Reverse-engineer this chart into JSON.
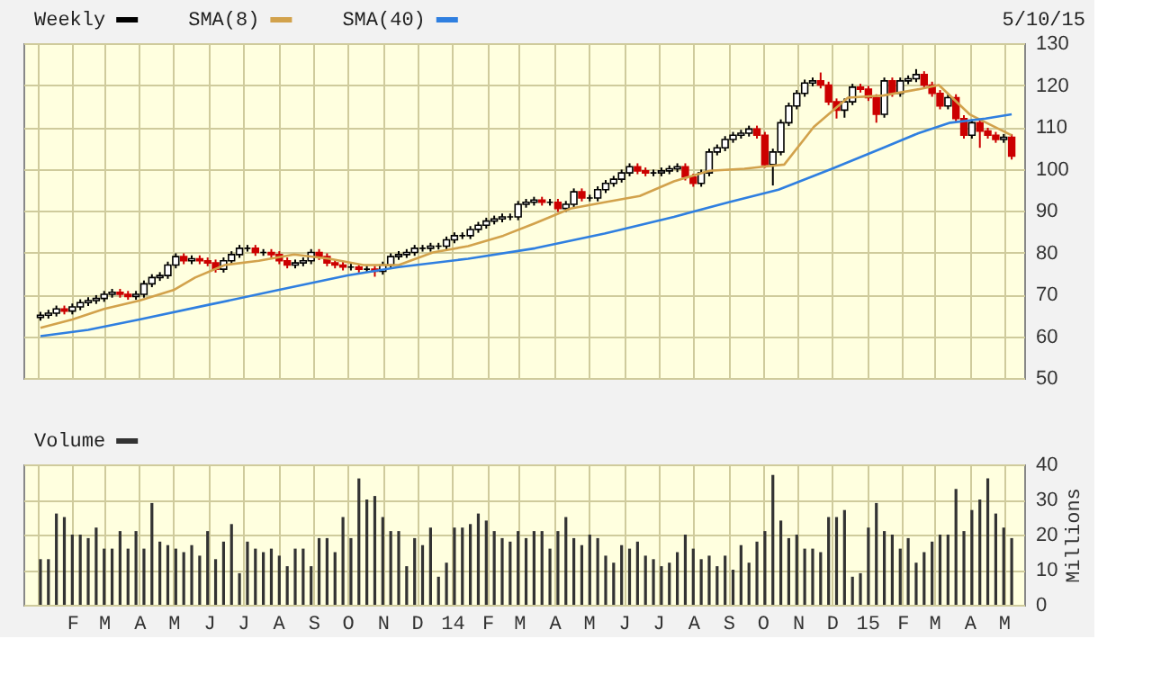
{
  "chart_data": [
    {
      "type": "candlestick",
      "title": null,
      "x": [
        "2013-01-04",
        "2013-01-11",
        "2013-01-18",
        "2013-01-25",
        "2013-02-01",
        "2013-02-08",
        "2013-02-15",
        "2013-02-22",
        "2013-03-01",
        "2013-03-08",
        "2013-03-15",
        "2013-03-22",
        "2013-03-29",
        "2013-04-05",
        "2013-04-12",
        "2013-04-19",
        "2013-04-26",
        "2013-05-03",
        "2013-05-10",
        "2013-05-17",
        "2013-05-24",
        "2013-05-31",
        "2013-06-07",
        "2013-06-14",
        "2013-06-21",
        "2013-06-28",
        "2013-07-05",
        "2013-07-12",
        "2013-07-19",
        "2013-07-26",
        "2013-08-02",
        "2013-08-09",
        "2013-08-16",
        "2013-08-23",
        "2013-08-30",
        "2013-09-06",
        "2013-09-13",
        "2013-09-20",
        "2013-09-27",
        "2013-10-04",
        "2013-10-11",
        "2013-10-18",
        "2013-10-25",
        "2013-11-01",
        "2013-11-08",
        "2013-11-15",
        "2013-11-22",
        "2013-11-29",
        "2013-12-06",
        "2013-12-13",
        "2013-12-20",
        "2013-12-27",
        "2014-01-03",
        "2014-01-10",
        "2014-01-17",
        "2014-01-24",
        "2014-01-31",
        "2014-02-07",
        "2014-02-14",
        "2014-02-21",
        "2014-02-28",
        "2014-03-07",
        "2014-03-14",
        "2014-03-21",
        "2014-03-28",
        "2014-04-04",
        "2014-04-11",
        "2014-04-18",
        "2014-04-25",
        "2014-05-02",
        "2014-05-09",
        "2014-05-16",
        "2014-05-23",
        "2014-05-30",
        "2014-06-06",
        "2014-06-13",
        "2014-06-20",
        "2014-06-27",
        "2014-07-04",
        "2014-07-11",
        "2014-07-18",
        "2014-07-25",
        "2014-08-01",
        "2014-08-08",
        "2014-08-15",
        "2014-08-22",
        "2014-08-29",
        "2014-09-05",
        "2014-09-12",
        "2014-09-19",
        "2014-09-26",
        "2014-10-03",
        "2014-10-10",
        "2014-10-17",
        "2014-10-24",
        "2014-10-31",
        "2014-11-07",
        "2014-11-14",
        "2014-11-21",
        "2014-11-28",
        "2014-12-05",
        "2014-12-12",
        "2014-12-19",
        "2014-12-26",
        "2015-01-02",
        "2015-01-09",
        "2015-01-16",
        "2015-01-23",
        "2015-01-30",
        "2015-02-06",
        "2015-02-13",
        "2015-02-20",
        "2015-02-27",
        "2015-03-06",
        "2015-03-13",
        "2015-03-20",
        "2015-03-27",
        "2015-04-03",
        "2015-04-10",
        "2015-04-17",
        "2015-04-24",
        "2015-05-01",
        "2015-05-08"
      ],
      "series": [
        {
          "name": "Weekly",
          "type": "candlestick",
          "color": "#000000",
          "colors": [
            "#000000",
            "#000000",
            "#000000",
            "#cc0000",
            "#000000",
            "#000000",
            "#000000",
            "#000000",
            "#000000",
            "#000000",
            "#cc0000",
            "#cc0000",
            "#000000",
            "#000000",
            "#000000",
            "#000000",
            "#000000",
            "#000000",
            "#cc0000",
            "#000000",
            "#cc0000",
            "#cc0000",
            "#cc0000",
            "#000000",
            "#000000",
            "#000000",
            "#000000",
            "#cc0000",
            "#000000",
            "#cc0000",
            "#cc0000",
            "#cc0000",
            "#000000",
            "#000000",
            "#000000",
            "#cc0000",
            "#cc0000",
            "#cc0000",
            "#cc0000",
            "#000000",
            "#cc0000",
            "#000000",
            "#cc0000",
            "#000000",
            "#000000",
            "#000000",
            "#000000",
            "#000000",
            "#000000",
            "#000000",
            "#000000",
            "#000000",
            "#000000",
            "#000000",
            "#000000",
            "#000000",
            "#000000",
            "#000000",
            "#000000",
            "#000000",
            "#000000",
            "#000000",
            "#000000",
            "#cc0000",
            "#000000",
            "#cc0000",
            "#000000",
            "#000000",
            "#cc0000",
            "#000000",
            "#000000",
            "#000000",
            "#000000",
            "#000000",
            "#000000",
            "#cc0000",
            "#cc0000",
            "#000000",
            "#000000",
            "#000000",
            "#000000",
            "#cc0000",
            "#cc0000",
            "#000000",
            "#000000",
            "#000000",
            "#000000",
            "#000000",
            "#000000",
            "#000000",
            "#cc0000",
            "#cc0000",
            "#000000",
            "#000000",
            "#000000",
            "#000000",
            "#000000",
            "#000000",
            "#cc0000",
            "#cc0000",
            "#cc0000",
            "#000000",
            "#000000",
            "#cc0000",
            "#cc0000",
            "#cc0000",
            "#000000",
            "#cc0000",
            "#000000",
            "#000000",
            "#000000",
            "#cc0000",
            "#cc0000",
            "#cc0000",
            "#000000",
            "#cc0000",
            "#cc0000",
            "#000000",
            "#cc0000",
            "#cc0000",
            "#cc0000",
            "#000000",
            "#cc0000"
          ],
          "ohlc": [
            [
              64.5,
              65.8,
              63.7,
              65
            ],
            [
              65,
              66.3,
              64.2,
              65.5
            ],
            [
              65.5,
              67.3,
              64.7,
              66.5
            ],
            [
              66.5,
              67.3,
              65.2,
              66
            ],
            [
              66,
              67.8,
              65.2,
              67
            ],
            [
              67,
              68.8,
              66.2,
              68
            ],
            [
              68,
              69.3,
              67.2,
              68.5
            ],
            [
              68.5,
              69.8,
              67.7,
              69
            ],
            [
              69,
              70.8,
              68.2,
              70
            ],
            [
              70,
              71.3,
              69.2,
              70.5
            ],
            [
              70.5,
              71.3,
              69.2,
              70
            ],
            [
              70,
              70.8,
              68.7,
              69.5
            ],
            [
              69.5,
              70.8,
              68.7,
              70
            ],
            [
              70,
              73.3,
              69.2,
              72.5
            ],
            [
              72.5,
              74.8,
              71.7,
              74
            ],
            [
              74,
              75.3,
              73.2,
              74.5
            ],
            [
              74.5,
              77.8,
              73.7,
              77
            ],
            [
              77,
              79.8,
              76.2,
              79
            ],
            [
              79,
              79.8,
              77.2,
              78
            ],
            [
              78,
              79.3,
              77.2,
              78.5
            ],
            [
              78.5,
              79.3,
              77.2,
              78
            ],
            [
              78,
              78.8,
              76.7,
              77.5
            ],
            [
              77.5,
              78.3,
              75.2,
              76
            ],
            [
              76,
              78.8,
              75.2,
              78
            ],
            [
              78,
              80.3,
              77.2,
              79.5
            ],
            [
              79.5,
              81.8,
              78.7,
              81
            ],
            [
              81,
              81.8,
              80.2,
              81
            ],
            [
              81,
              81.8,
              79.2,
              80
            ],
            [
              80,
              80.8,
              79.2,
              80
            ],
            [
              80,
              80.8,
              78.7,
              79.5
            ],
            [
              79.5,
              80.3,
              77.2,
              78
            ],
            [
              78,
              78.8,
              76.2,
              77
            ],
            [
              77,
              78.3,
              76.2,
              77.5
            ],
            [
              77.5,
              78.8,
              76.7,
              78
            ],
            [
              78,
              80.8,
              77.2,
              80
            ],
            [
              80,
              80.8,
              78.2,
              79
            ],
            [
              79,
              79.8,
              76.7,
              77.5
            ],
            [
              77.5,
              78.3,
              76.2,
              77
            ],
            [
              77,
              77.8,
              75.7,
              76.5
            ],
            [
              76.5,
              77.3,
              75.7,
              76.5
            ],
            [
              76.5,
              77.3,
              75.2,
              76
            ],
            [
              76,
              76.8,
              75.2,
              76
            ],
            [
              76,
              76.8,
              74.2,
              75.5
            ],
            [
              75.5,
              77.8,
              74.7,
              77
            ],
            [
              77,
              79.8,
              76.2,
              79
            ],
            [
              79,
              80.3,
              78.2,
              79.5
            ],
            [
              79.5,
              80.8,
              78.7,
              80
            ],
            [
              80,
              81.8,
              79.2,
              81
            ],
            [
              81,
              81.8,
              80.2,
              81
            ],
            [
              81,
              82.3,
              80.2,
              81.5
            ],
            [
              81.5,
              82.3,
              80.7,
              81.5
            ],
            [
              81.5,
              83.8,
              80.7,
              83
            ],
            [
              83,
              84.8,
              82.2,
              84
            ],
            [
              84,
              84.8,
              83.2,
              84
            ],
            [
              84,
              86.3,
              83.2,
              85.5
            ],
            [
              85.5,
              87.3,
              84.7,
              86.5
            ],
            [
              86.5,
              88.3,
              85.7,
              87.5
            ],
            [
              87.5,
              88.8,
              86.7,
              88
            ],
            [
              88,
              89.3,
              87.2,
              88.5
            ],
            [
              88.5,
              89.3,
              87.7,
              88.5
            ],
            [
              88.5,
              92.3,
              87.7,
              91.5
            ],
            [
              91.5,
              92.8,
              90.7,
              92
            ],
            [
              92,
              93.3,
              91.2,
              92.5
            ],
            [
              92.5,
              93.3,
              91.2,
              92
            ],
            [
              92,
              92.8,
              91.2,
              92
            ],
            [
              92,
              92.8,
              89.7,
              90.5
            ],
            [
              90.5,
              92.3,
              89.7,
              91.5
            ],
            [
              91.5,
              95.3,
              90.7,
              94.5
            ],
            [
              94.5,
              95.3,
              92.2,
              93
            ],
            [
              93,
              93.8,
              92.2,
              93
            ],
            [
              93,
              95.8,
              92.2,
              95
            ],
            [
              95,
              97.3,
              94.2,
              96.5
            ],
            [
              96.5,
              98.3,
              95.7,
              97.5
            ],
            [
              97.5,
              99.8,
              96.7,
              99
            ],
            [
              99,
              101.3,
              98.2,
              100.5
            ],
            [
              100.5,
              101.3,
              98.7,
              99.5
            ],
            [
              99.5,
              100.3,
              98.2,
              99
            ],
            [
              99,
              99.8,
              98.2,
              99
            ],
            [
              99,
              100.3,
              98.2,
              99.5
            ],
            [
              99.5,
              100.8,
              98.7,
              100
            ],
            [
              100,
              101.3,
              99.2,
              100.5
            ],
            [
              100.5,
              101.3,
              97.2,
              98
            ],
            [
              98,
              98.8,
              95.7,
              96.5
            ],
            [
              96.5,
              99.8,
              95.7,
              99
            ],
            [
              99,
              104.8,
              98.2,
              104
            ],
            [
              104,
              105.8,
              103.2,
              105
            ],
            [
              105,
              107.8,
              104.2,
              107
            ],
            [
              107,
              108.8,
              106.2,
              108
            ],
            [
              108,
              109.3,
              107.2,
              108.5
            ],
            [
              108.5,
              110.3,
              107.7,
              109.5
            ],
            [
              109.5,
              110.3,
              107.2,
              108
            ],
            [
              108,
              108.8,
              100.2,
              101
            ],
            [
              101,
              104.8,
              96,
              104
            ],
            [
              104,
              111.8,
              103.2,
              111
            ],
            [
              111,
              115.8,
              110.2,
              115
            ],
            [
              115,
              118.8,
              114.2,
              118
            ],
            [
              118,
              121.3,
              117.2,
              120.5
            ],
            [
              120.5,
              121.8,
              119.7,
              121
            ],
            [
              121,
              123,
              119.2,
              120
            ],
            [
              120,
              120.8,
              115.2,
              116
            ],
            [
              116,
              116.8,
              112,
              114
            ],
            [
              114,
              116.8,
              112.2,
              116
            ],
            [
              116,
              120.3,
              115.2,
              119.5
            ],
            [
              119.5,
              120.3,
              118.2,
              119
            ],
            [
              119,
              119.8,
              116.2,
              117
            ],
            [
              117,
              117.8,
              111,
              113
            ],
            [
              113,
              121.8,
              112.2,
              121
            ],
            [
              121,
              121.8,
              117.2,
              118
            ],
            [
              118,
              121.8,
              117.2,
              121
            ],
            [
              121,
              122.3,
              120.2,
              121.5
            ],
            [
              121.5,
              123.8,
              120.7,
              122.5
            ],
            [
              122.5,
              123.3,
              119.2,
              120
            ],
            [
              120,
              120.8,
              117.2,
              118
            ],
            [
              118,
              118.8,
              114.2,
              115
            ],
            [
              115,
              117.8,
              114.2,
              117
            ],
            [
              117,
              117.8,
              111.2,
              112
            ],
            [
              112,
              112.8,
              107.2,
              108
            ],
            [
              108,
              111.8,
              107.2,
              111
            ],
            [
              111,
              111.8,
              105,
              109
            ],
            [
              109,
              109.8,
              107.2,
              108
            ],
            [
              108,
              108.8,
              106.2,
              107
            ],
            [
              107,
              108.3,
              106.2,
              107.5
            ],
            [
              107.5,
              108.3,
              102.2,
              103
            ]
          ]
        },
        {
          "name": "SMA(8)",
          "type": "line",
          "color": "#d2a24c",
          "x": [
            "2013-01-04",
            "2013-02-01",
            "2013-03-01",
            "2013-04-01",
            "2013-05-01",
            "2013-05-20",
            "2013-06-15",
            "2013-07-15",
            "2013-08-15",
            "2013-09-15",
            "2013-10-15",
            "2013-11-15",
            "2013-12-15",
            "2014-01-15",
            "2014-02-15",
            "2014-03-15",
            "2014-04-15",
            "2014-05-15",
            "2014-06-15",
            "2014-07-15",
            "2014-08-15",
            "2014-09-15",
            "2014-10-01",
            "2014-10-20",
            "2014-11-15",
            "2014-12-15",
            "2015-01-15",
            "2015-02-15",
            "2015-03-05",
            "2015-04-01",
            "2015-05-08"
          ],
          "values": [
            62,
            64,
            66.5,
            68.5,
            71,
            74,
            77,
            78,
            79.5,
            78.5,
            77,
            77,
            80,
            81.5,
            84,
            87,
            90.5,
            92,
            93.5,
            97,
            99.5,
            100,
            100.5,
            101,
            110,
            117,
            117.5,
            119,
            120,
            113,
            108
          ]
        },
        {
          "name": "SMA(40)",
          "type": "line",
          "color": "#2f7fe0",
          "x": [
            "2013-01-04",
            "2013-02-15",
            "2013-04-01",
            "2013-06-01",
            "2013-08-01",
            "2013-10-01",
            "2013-11-15",
            "2014-01-15",
            "2014-03-15",
            "2014-05-15",
            "2014-07-15",
            "2014-09-01",
            "2014-10-15",
            "2014-12-01",
            "2015-01-15",
            "2015-02-15",
            "2015-03-15",
            "2015-04-15",
            "2015-05-08"
          ],
          "values": [
            60,
            61.5,
            64,
            67.5,
            71,
            74.5,
            76.5,
            78.5,
            81,
            84.5,
            88.5,
            92,
            95,
            100,
            105,
            108.5,
            111,
            112,
            113
          ]
        }
      ],
      "xlim": [
        "2012-12-20",
        "2015-05-19"
      ],
      "xticks": [
        {
          "value": "2013-01-01",
          "label": null
        },
        {
          "value": "2013-02-01",
          "label": null
        },
        {
          "value": "2013-03-01",
          "label": null
        },
        {
          "value": "2013-04-01",
          "label": null
        },
        {
          "value": "2013-05-01",
          "label": null
        },
        {
          "value": "2013-06-01",
          "label": null
        },
        {
          "value": "2013-07-01",
          "label": null
        },
        {
          "value": "2013-08-01",
          "label": null
        },
        {
          "value": "2013-09-01",
          "label": null
        },
        {
          "value": "2013-10-01",
          "label": null
        },
        {
          "value": "2013-11-01",
          "label": null
        },
        {
          "value": "2013-12-01",
          "label": null
        },
        {
          "value": "2014-01-01",
          "label": null
        },
        {
          "value": "2014-02-01",
          "label": null
        },
        {
          "value": "2014-03-01",
          "label": null
        },
        {
          "value": "2014-04-01",
          "label": null
        },
        {
          "value": "2014-05-01",
          "label": null
        },
        {
          "value": "2014-06-01",
          "label": null
        },
        {
          "value": "2014-07-01",
          "label": null
        },
        {
          "value": "2014-08-01",
          "label": null
        },
        {
          "value": "2014-09-01",
          "label": null
        },
        {
          "value": "2014-10-01",
          "label": null
        },
        {
          "value": "2014-11-01",
          "label": null
        },
        {
          "value": "2014-12-01",
          "label": null
        },
        {
          "value": "2015-01-01",
          "label": null
        },
        {
          "value": "2015-02-01",
          "label": null
        },
        {
          "value": "2015-03-01",
          "label": null
        },
        {
          "value": "2015-04-01",
          "label": null
        },
        {
          "value": "2015-05-01",
          "label": null
        }
      ],
      "ylim": [
        50,
        130
      ],
      "yticks": [
        50,
        60,
        70,
        80,
        90,
        100,
        110,
        120,
        130
      ],
      "grid": true,
      "legend": "top left",
      "tick_labels": "y",
      "annotations": [
        "5/10/15"
      ]
    },
    {
      "type": "bar",
      "x": [
        "2013-01-04",
        "2013-01-11",
        "2013-01-18",
        "2013-01-25",
        "2013-02-01",
        "2013-02-08",
        "2013-02-15",
        "2013-02-22",
        "2013-03-01",
        "2013-03-08",
        "2013-03-15",
        "2013-03-22",
        "2013-03-29",
        "2013-04-05",
        "2013-04-12",
        "2013-04-19",
        "2013-04-26",
        "2013-05-03",
        "2013-05-10",
        "2013-05-17",
        "2013-05-24",
        "2013-05-31",
        "2013-06-07",
        "2013-06-14",
        "2013-06-21",
        "2013-06-28",
        "2013-07-05",
        "2013-07-12",
        "2013-07-19",
        "2013-07-26",
        "2013-08-02",
        "2013-08-09",
        "2013-08-16",
        "2013-08-23",
        "2013-08-30",
        "2013-09-06",
        "2013-09-13",
        "2013-09-20",
        "2013-09-27",
        "2013-10-04",
        "2013-10-11",
        "2013-10-18",
        "2013-10-25",
        "2013-11-01",
        "2013-11-08",
        "2013-11-15",
        "2013-11-22",
        "2013-11-29",
        "2013-12-06",
        "2013-12-13",
        "2013-12-20",
        "2013-12-27",
        "2014-01-03",
        "2014-01-10",
        "2014-01-17",
        "2014-01-24",
        "2014-01-31",
        "2014-02-07",
        "2014-02-14",
        "2014-02-21",
        "2014-02-28",
        "2014-03-07",
        "2014-03-14",
        "2014-03-21",
        "2014-03-28",
        "2014-04-04",
        "2014-04-11",
        "2014-04-18",
        "2014-04-25",
        "2014-05-02",
        "2014-05-09",
        "2014-05-16",
        "2014-05-23",
        "2014-05-30",
        "2014-06-06",
        "2014-06-13",
        "2014-06-20",
        "2014-06-27",
        "2014-07-04",
        "2014-07-11",
        "2014-07-18",
        "2014-07-25",
        "2014-08-01",
        "2014-08-08",
        "2014-08-15",
        "2014-08-22",
        "2014-08-29",
        "2014-09-05",
        "2014-09-12",
        "2014-09-19",
        "2014-09-26",
        "2014-10-03",
        "2014-10-10",
        "2014-10-17",
        "2014-10-24",
        "2014-10-31",
        "2014-11-07",
        "2014-11-14",
        "2014-11-21",
        "2014-11-28",
        "2014-12-05",
        "2014-12-12",
        "2014-12-19",
        "2014-12-26",
        "2015-01-02",
        "2015-01-09",
        "2015-01-16",
        "2015-01-23",
        "2015-01-30",
        "2015-02-06",
        "2015-02-13",
        "2015-02-20",
        "2015-02-27",
        "2015-03-06",
        "2015-03-13",
        "2015-03-20",
        "2015-03-27",
        "2015-04-03",
        "2015-04-10",
        "2015-04-17",
        "2015-04-24",
        "2015-05-01",
        "2015-05-08"
      ],
      "series": [
        {
          "name": "Volume",
          "color": "#333333",
          "values": [
            13,
            13,
            26,
            25,
            20,
            20,
            19,
            22,
            16,
            16,
            21,
            16,
            21,
            16,
            29,
            18,
            17,
            16,
            15,
            17,
            14,
            21,
            13,
            18,
            23,
            9,
            18,
            16,
            15,
            16,
            14,
            11,
            16,
            16,
            11,
            19,
            19,
            15,
            25,
            19,
            36,
            30,
            31,
            25,
            21,
            21,
            11,
            19,
            17,
            22,
            8,
            12,
            22,
            22,
            23,
            26,
            24,
            21,
            19,
            18,
            21,
            19,
            21,
            21,
            16,
            21,
            25,
            19,
            17,
            20,
            19,
            14,
            12,
            17,
            16,
            18,
            14,
            13,
            11,
            12,
            15,
            20,
            16,
            13,
            14,
            11,
            14,
            10,
            17,
            12,
            18,
            21,
            37,
            24,
            19,
            20,
            16,
            16,
            15,
            25,
            25,
            27,
            8,
            9,
            22,
            29,
            21,
            20,
            16,
            19,
            12,
            15,
            18,
            20,
            20,
            33,
            21,
            27,
            30,
            36,
            26,
            22,
            19
          ]
        }
      ],
      "xlim": [
        "2012-12-20",
        "2015-05-19"
      ],
      "xticks": [
        {
          "value": "2013-01-01",
          "label": null
        },
        {
          "value": "2013-02-01",
          "label": "F"
        },
        {
          "value": "2013-03-01",
          "label": "M"
        },
        {
          "value": "2013-04-01",
          "label": "A"
        },
        {
          "value": "2013-05-01",
          "label": "M"
        },
        {
          "value": "2013-06-01",
          "label": "J"
        },
        {
          "value": "2013-07-01",
          "label": "J"
        },
        {
          "value": "2013-08-01",
          "label": "A"
        },
        {
          "value": "2013-09-01",
          "label": "S"
        },
        {
          "value": "2013-10-01",
          "label": "O"
        },
        {
          "value": "2013-11-01",
          "label": "N"
        },
        {
          "value": "2013-12-01",
          "label": "D"
        },
        {
          "value": "2014-01-01",
          "label": "14"
        },
        {
          "value": "2014-02-01",
          "label": "F"
        },
        {
          "value": "2014-03-01",
          "label": "M"
        },
        {
          "value": "2014-04-01",
          "label": "A"
        },
        {
          "value": "2014-05-01",
          "label": "M"
        },
        {
          "value": "2014-06-01",
          "label": "J"
        },
        {
          "value": "2014-07-01",
          "label": "J"
        },
        {
          "value": "2014-08-01",
          "label": "A"
        },
        {
          "value": "2014-09-01",
          "label": "S"
        },
        {
          "value": "2014-10-01",
          "label": "O"
        },
        {
          "value": "2014-11-01",
          "label": "N"
        },
        {
          "value": "2014-12-01",
          "label": "D"
        },
        {
          "value": "2015-01-01",
          "label": "15"
        },
        {
          "value": "2015-02-01",
          "label": "F"
        },
        {
          "value": "2015-03-01",
          "label": "M"
        },
        {
          "value": "2015-04-01",
          "label": "A"
        },
        {
          "value": "2015-05-01",
          "label": "M"
        }
      ],
      "ylim": [
        0,
        40
      ],
      "yticks": [
        0,
        10,
        20,
        30,
        40
      ],
      "ylabel": "Millions",
      "grid": true,
      "legend": "top left"
    }
  ]
}
